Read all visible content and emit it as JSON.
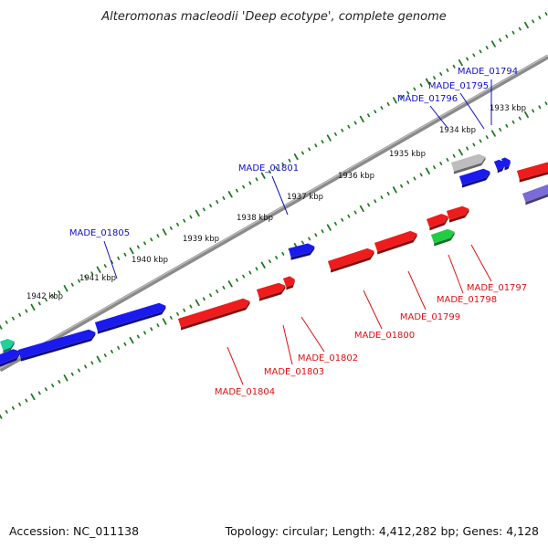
{
  "title": "Alteromonas macleodii 'Deep ecotype', complete genome",
  "accession": "Accession: NC_011138",
  "summary": "Topology: circular; Length: 4,412,282 bp; Genes: 4,128",
  "colors": {
    "backbone": "#8a8a8a",
    "ticks": "#1f7a1f",
    "forward_label": "#1010c8",
    "reverse_label": "#e01010",
    "gene_blue": "#1a1aee",
    "gene_red": "#ee1c1c",
    "gene_green": "#22cc44",
    "gene_teal": "#21d19a",
    "gene_gray": "#bdbdbd",
    "gene_purple": "#7a6cd6"
  },
  "kbp_ticks": [
    "1933 kbp",
    "1934 kbp",
    "1935 kbp",
    "1936 kbp",
    "1937 kbp",
    "1938 kbp",
    "1939 kbp",
    "1940 kbp",
    "1941 kbp",
    "1942 kbp"
  ],
  "forward_labels": [
    "MADE_01794",
    "MADE_01795",
    "MADE_01796",
    "MADE_01801",
    "MADE_01805"
  ],
  "reverse_labels": [
    "MADE_01797",
    "MADE_01798",
    "MADE_01799",
    "MADE_01800",
    "MADE_01802",
    "MADE_01803",
    "MADE_01804"
  ]
}
